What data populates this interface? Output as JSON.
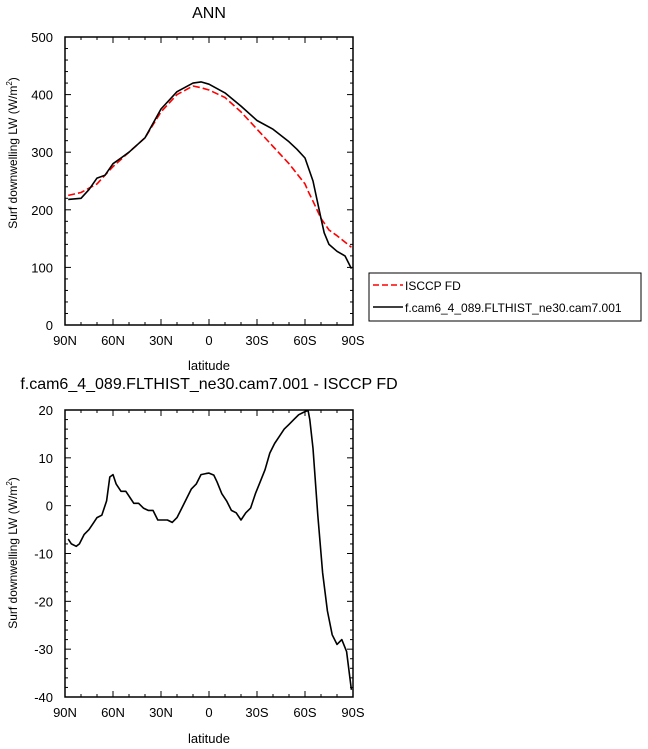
{
  "chart_data": [
    {
      "type": "line",
      "title": "ANN",
      "xlabel": "latitude",
      "ylabel": "Surf downwelling LW (W/m²)",
      "ylabel_main": "Surf downwelling LW (W/m",
      "ylabel_sup": "2",
      "ylabel_end": ")",
      "xlim": [
        90,
        -90
      ],
      "ylim": [
        0,
        500
      ],
      "xticks": [
        90,
        60,
        30,
        0,
        -30,
        -60,
        -90
      ],
      "xtick_labels": [
        "90N",
        "60N",
        "30N",
        "0",
        "30S",
        "60S",
        "90S"
      ],
      "yticks": [
        0,
        100,
        200,
        300,
        400,
        500
      ],
      "ytick_labels": [
        "0",
        "100",
        "200",
        "300",
        "400",
        "500"
      ],
      "grid": false,
      "legend_position": "right-outside",
      "series": [
        {
          "name": "ISCCP FD",
          "color": "#ff0000",
          "dash": "dashed",
          "x": [
            88,
            80,
            70,
            60,
            50,
            40,
            30,
            20,
            10,
            5,
            0,
            -10,
            -20,
            -30,
            -40,
            -50,
            -60,
            -62,
            -65,
            -70,
            -75,
            -80,
            -89
          ],
          "y": [
            225,
            230,
            245,
            275,
            300,
            325,
            370,
            400,
            415,
            412,
            408,
            395,
            370,
            340,
            310,
            280,
            245,
            232,
            215,
            185,
            165,
            155,
            135
          ]
        },
        {
          "name": "f.cam6_4_089.FLTHIST_ne30.cam7.001",
          "color": "#000000",
          "dash": "solid",
          "x": [
            88,
            80,
            75,
            70,
            65,
            60,
            55,
            50,
            40,
            30,
            20,
            10,
            5,
            0,
            -10,
            -20,
            -30,
            -40,
            -50,
            -55,
            -60,
            -65,
            -70,
            -72,
            -75,
            -80,
            -85,
            -89
          ],
          "y": [
            218,
            220,
            235,
            255,
            260,
            280,
            290,
            300,
            325,
            375,
            405,
            420,
            422,
            418,
            403,
            380,
            355,
            340,
            318,
            305,
            290,
            250,
            185,
            160,
            140,
            128,
            120,
            98
          ]
        }
      ]
    },
    {
      "type": "line",
      "title": "f.cam6_4_089.FLTHIST_ne30.cam7.001 - ISCCP FD",
      "xlabel": "latitude",
      "ylabel": "Surf downwelling LW (W/m²)",
      "ylabel_main": "Surf downwelling LW (W/m",
      "ylabel_sup": "2",
      "ylabel_end": ")",
      "xlim": [
        90,
        -90
      ],
      "ylim": [
        -40,
        20
      ],
      "xticks": [
        90,
        60,
        30,
        0,
        -30,
        -60,
        -90
      ],
      "xtick_labels": [
        "90N",
        "60N",
        "30N",
        "0",
        "30S",
        "60S",
        "90S"
      ],
      "yticks": [
        -40,
        -30,
        -20,
        -10,
        0,
        10,
        20
      ],
      "ytick_labels": [
        "-40",
        "-30",
        "-20",
        "-10",
        "0",
        "10",
        "20"
      ],
      "grid": false,
      "series": [
        {
          "color": "#000000",
          "dash": "solid",
          "x": [
            88,
            86,
            83,
            81,
            78,
            75,
            72,
            70,
            67,
            64,
            62,
            60,
            58,
            55,
            52,
            49,
            47,
            44,
            41,
            38,
            35,
            32,
            29,
            26,
            23,
            20,
            17,
            14,
            11,
            8,
            5,
            2,
            0,
            -3,
            -5,
            -8,
            -11,
            -14,
            -17,
            -20,
            -23,
            -26,
            -29,
            -32,
            -35,
            -38,
            -41,
            -44,
            -47,
            -50,
            -53,
            -56,
            -59,
            -61,
            -62,
            -63,
            -65,
            -68,
            -71,
            -74,
            -77,
            -80,
            -83,
            -86,
            -89
          ],
          "y": [
            -7,
            -8,
            -8.5,
            -8,
            -6,
            -5,
            -3.5,
            -2.5,
            -2,
            1,
            6,
            6.5,
            4.5,
            3,
            3,
            1.5,
            0.5,
            0.5,
            -0.5,
            -1,
            -1,
            -3,
            -3,
            -3,
            -3.5,
            -2.5,
            -0.5,
            1.5,
            3.5,
            4.5,
            6.5,
            6.7,
            6.8,
            6.4,
            5,
            2.5,
            1,
            -1,
            -1.5,
            -3,
            -1.5,
            -0.5,
            2.5,
            5,
            7.5,
            11,
            13,
            14.5,
            16,
            17,
            18,
            19,
            19.5,
            19.8,
            19.8,
            18,
            12,
            -2,
            -14,
            -22,
            -27,
            -29,
            -28,
            -30.5,
            -38.5
          ]
        }
      ]
    }
  ]
}
